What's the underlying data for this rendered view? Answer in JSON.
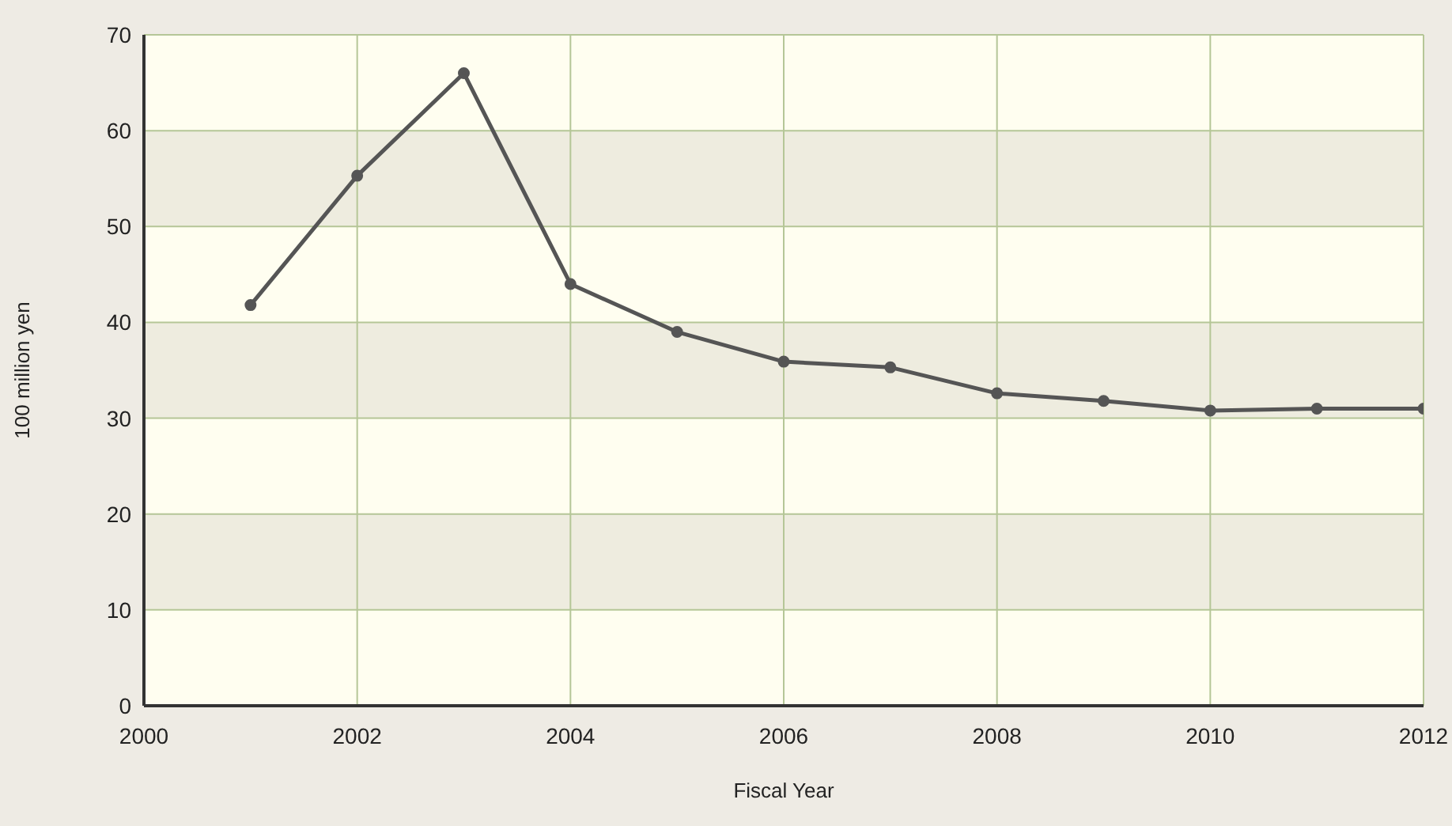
{
  "chart_data": {
    "type": "line",
    "xlabel": "Fiscal Year",
    "ylabel": "100 million yen",
    "x": [
      2001,
      2002,
      2003,
      2004,
      2005,
      2006,
      2007,
      2008,
      2009,
      2010,
      2011,
      2012
    ],
    "series": [
      {
        "color": "#555555",
        "values": [
          41.8,
          55.3,
          66,
          44,
          39,
          35.9,
          35.3,
          32.6,
          31.8,
          30.8,
          31,
          31
        ]
      }
    ],
    "xlim": [
      2000,
      2012
    ],
    "xticks": [
      2000,
      2002,
      2004,
      2006,
      2008,
      2010,
      2012
    ],
    "ylim": [
      0,
      70
    ],
    "yticks": [
      0,
      10,
      20,
      30,
      40,
      50,
      60,
      70
    ],
    "grid": true,
    "legend": false,
    "marker": "circle",
    "line_style": "solid"
  }
}
